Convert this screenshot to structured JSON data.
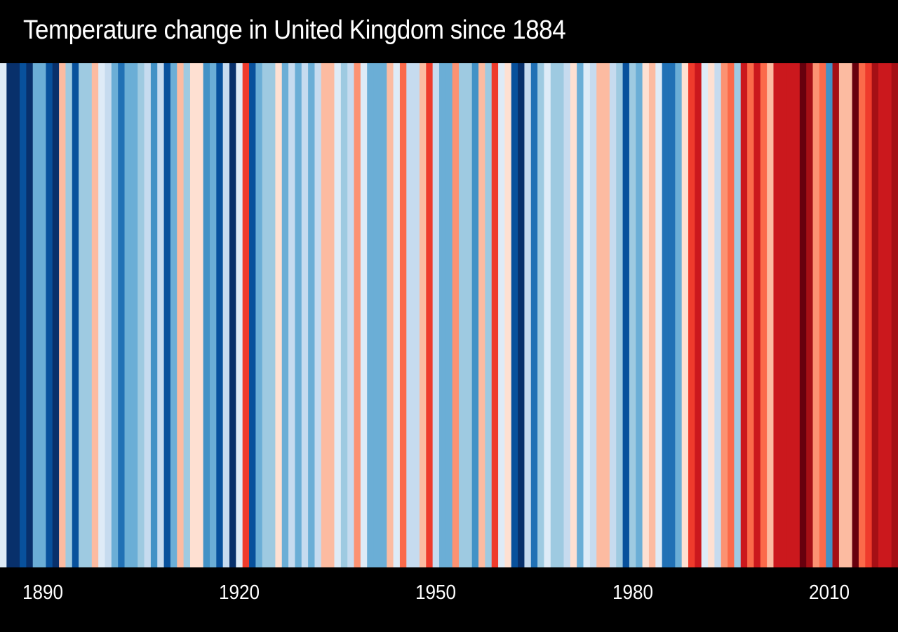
{
  "chart_data": {
    "type": "heatmap",
    "title": "Temperature change in United Kingdom since 1884",
    "x_range": [
      1884,
      2020
    ],
    "x_ticks": [
      "1890",
      "1920",
      "1950",
      "1980",
      "2010"
    ],
    "grid": false,
    "legend": "none",
    "palette_cold_to_warm": [
      "#08306b",
      "#08519c",
      "#2171b5",
      "#4292c6",
      "#6baed6",
      "#9ecae1",
      "#c6dbef",
      "#deebf7",
      "#fee0d2",
      "#fcbba1",
      "#fc9272",
      "#fb6a4a",
      "#ef3b2c",
      "#cb181d",
      "#a50f15",
      "#67000d"
    ],
    "stripe_colors": [
      "#deebf7",
      "#08306b",
      "#08306b",
      "#08519c",
      "#08306b",
      "#6baed6",
      "#6baed6",
      "#08519c",
      "#08306b",
      "#fcbba1",
      "#9ecae1",
      "#08519c",
      "#9ecae1",
      "#9ecae1",
      "#fcbba1",
      "#deebf7",
      "#c6dbef",
      "#6baed6",
      "#2171b5",
      "#6baed6",
      "#6baed6",
      "#9ecae1",
      "#c6dbef",
      "#4292c6",
      "#c6dbef",
      "#08519c",
      "#6baed6",
      "#fcbba1",
      "#9ecae1",
      "#fee0d2",
      "#fee0d2",
      "#4292c6",
      "#6baed6",
      "#08519c",
      "#c6dbef",
      "#08306b",
      "#deebf7",
      "#ef3b2c",
      "#08519c",
      "#6baed6",
      "#9ecae1",
      "#9ecae1",
      "#fee0d2",
      "#6baed6",
      "#c6dbef",
      "#6baed6",
      "#c6dbef",
      "#6baed6",
      "#c6dbef",
      "#fcbba1",
      "#fcbba1",
      "#deebf7",
      "#9ecae1",
      "#c6dbef",
      "#fc9272",
      "#deebf7",
      "#6baed6",
      "#6baed6",
      "#6baed6",
      "#fcbba1",
      "#deebf7",
      "#fb6a4a",
      "#c6dbef",
      "#c6dbef",
      "#fcbba1",
      "#ef3b2c",
      "#c6dbef",
      "#6baed6",
      "#6baed6",
      "#fc9272",
      "#9ecae1",
      "#9ecae1",
      "#4292c6",
      "#fcbba1",
      "#9ecae1",
      "#ef3b2c",
      "#deebf7",
      "#fee0d2",
      "#08519c",
      "#08306b",
      "#c6dbef",
      "#2171b5",
      "#9ecae1",
      "#deebf7",
      "#9ecae1",
      "#9ecae1",
      "#c6dbef",
      "#fee0d2",
      "#6baed6",
      "#deebf7",
      "#c6dbef",
      "#fcbba1",
      "#fcbba1",
      "#c6dbef",
      "#9ecae1",
      "#08519c",
      "#9ecae1",
      "#6baed6",
      "#fee0d2",
      "#fcbba1",
      "#deebf7",
      "#2171b5",
      "#2171b5",
      "#6baed6",
      "#fee0d2",
      "#ef3b2c",
      "#cb181d",
      "#deebf7",
      "#fee0d2",
      "#c6dbef",
      "#fc9272",
      "#fb6a4a",
      "#9ecae1",
      "#cb181d",
      "#fb6a4a",
      "#cb181d",
      "#fb6a4a",
      "#fcbba1",
      "#cb181d",
      "#cb181d",
      "#cb181d",
      "#cb181d",
      "#67000d",
      "#a50f15",
      "#fc9272",
      "#fb6a4a",
      "#4292c6",
      "#a50f15",
      "#fcbba1",
      "#fcbba1",
      "#67000d",
      "#fb6a4a",
      "#ef3b2c",
      "#a50f15",
      "#cb181d",
      "#cb181d",
      "#a50f15"
    ]
  }
}
